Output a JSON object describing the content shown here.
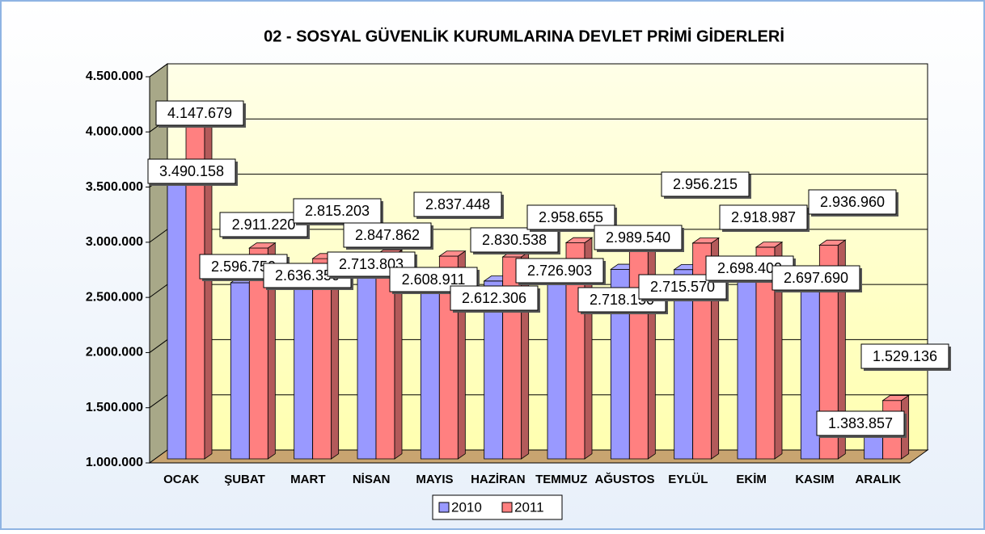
{
  "chart_data": {
    "type": "bar3d",
    "title": "02 - SOSYAL GÜVENLİK KURUMLARINA DEVLET PRİMİ GİDERLERİ",
    "categories": [
      "OCAK",
      "ŞUBAT",
      "MART",
      "NİSAN",
      "MAYIS",
      "HAZİRAN",
      "TEMMUZ",
      "AĞUSTOS",
      "EYLÜL",
      "EKİM",
      "KASIM",
      "ARALIK"
    ],
    "series": [
      {
        "name": "2010",
        "color": "#9999ff",
        "values": [
          3490158,
          2596750,
          2636350,
          2713803,
          2608911,
          2612306,
          2726903,
          2718150,
          2715570,
          2698400,
          2697690,
          1383857
        ],
        "value_labels": [
          "3.490.158",
          "2.596.750",
          "2.636.350",
          "2.713.803",
          "2.608.911",
          "2.612.306",
          "2.726.903",
          "2.718.150",
          "2.715.570",
          "2.698.400",
          "2.697.690",
          "1.383.857"
        ]
      },
      {
        "name": "2011",
        "color": "#ff8080",
        "values": [
          4147679,
          2911220,
          2815203,
          2847862,
          2837448,
          2830538,
          2958655,
          2989540,
          2956215,
          2918987,
          2936960,
          1529136
        ],
        "value_labels": [
          "4.147.679",
          "2.911.220",
          "2.815.203",
          "2.847.862",
          "2.837.448",
          "2.830.538",
          "2.958.655",
          "2.989.540",
          "2.956.215",
          "2.918.987",
          "2.936.960",
          "1.529.136"
        ]
      }
    ],
    "ylim": [
      1000000,
      4500000
    ],
    "yticks": [
      {
        "value": 1000000,
        "label": "1.000.000"
      },
      {
        "value": 1500000,
        "label": "1.500.000"
      },
      {
        "value": 2000000,
        "label": "2.000.000"
      },
      {
        "value": 2500000,
        "label": "2.500.000"
      },
      {
        "value": 3000000,
        "label": "3.000.000"
      },
      {
        "value": 3500000,
        "label": "3.500.000"
      },
      {
        "value": 4000000,
        "label": "4.000.000"
      },
      {
        "value": 4500000,
        "label": "4.500.000"
      }
    ],
    "grid": true,
    "legend": "bottom"
  }
}
